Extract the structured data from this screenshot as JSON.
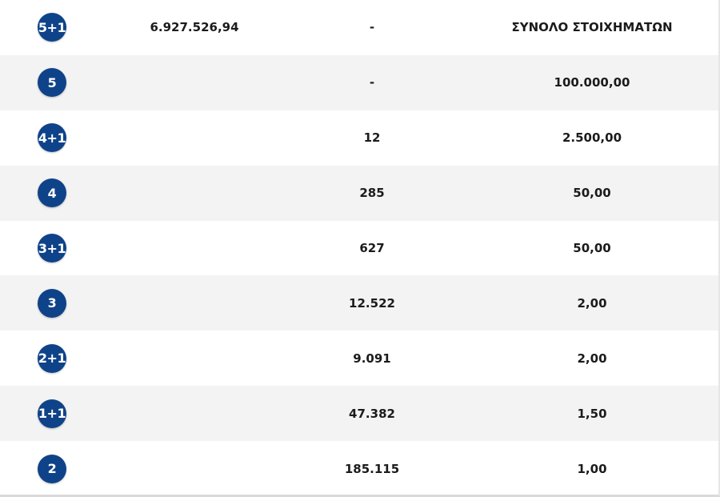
{
  "rows": [
    {
      "category": "5+1",
      "jackpot": "6.927.526,94",
      "winners": "-",
      "prize": "ΣΥΝΟΛΟ ΣΤΟΙΧΗΜΑΤΩΝ"
    },
    {
      "category": "5",
      "jackpot": "",
      "winners": "-",
      "prize": "100.000,00"
    },
    {
      "category": "4+1",
      "jackpot": "",
      "winners": "12",
      "prize": "2.500,00"
    },
    {
      "category": "4",
      "jackpot": "",
      "winners": "285",
      "prize": "50,00"
    },
    {
      "category": "3+1",
      "jackpot": "",
      "winners": "627",
      "prize": "50,00"
    },
    {
      "category": "3",
      "jackpot": "",
      "winners": "12.522",
      "prize": "2,00"
    },
    {
      "category": "2+1",
      "jackpot": "",
      "winners": "9.091",
      "prize": "2,00"
    },
    {
      "category": "1+1",
      "jackpot": "",
      "winners": "47.382",
      "prize": "1,50"
    },
    {
      "category": "2",
      "jackpot": "",
      "winners": "185.115",
      "prize": "1,00"
    }
  ],
  "colors": {
    "badge": "#0f4389",
    "row_alt": "#f3f3f3",
    "row_plain": "#ffffff",
    "text": "#1b1b1b"
  }
}
